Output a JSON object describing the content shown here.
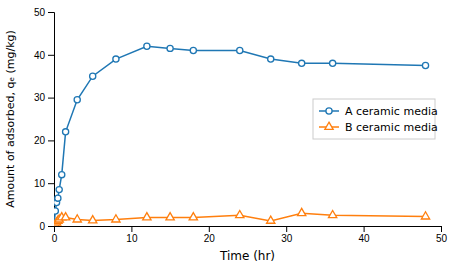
{
  "chart_data": {
    "type": "line",
    "x": [
      0,
      0.17,
      0.33,
      0.5,
      0.67,
      1.0,
      1.5,
      3,
      5,
      8,
      12,
      15,
      18,
      24,
      28,
      32,
      36,
      48
    ],
    "series": [
      {
        "name": "A ceramic media",
        "marker": "circle",
        "values": [
          0,
          3.5,
          5.5,
          6.5,
          8.5,
          12,
          22,
          29.5,
          35,
          39,
          42,
          41.5,
          41,
          41,
          39,
          38,
          38,
          37.5
        ]
      },
      {
        "name": "B ceramic media",
        "marker": "triangle",
        "values": [
          0,
          0.3,
          0.8,
          1.2,
          1.5,
          2.0,
          2.0,
          1.5,
          1.3,
          1.5,
          2.0,
          2.0,
          2.0,
          2.5,
          1.2,
          3.0,
          2.5,
          2.2
        ]
      }
    ],
    "x_label": "Time (hr)",
    "y_label": "Amount of adsorbed, qₑ (mg/kg)",
    "xlim": [
      0,
      50
    ],
    "ylim": [
      0,
      50
    ],
    "xticks": [
      0,
      10,
      20,
      30,
      40,
      50
    ],
    "yticks": [
      0,
      10,
      20,
      30,
      40,
      50
    ],
    "legend": "right"
  }
}
